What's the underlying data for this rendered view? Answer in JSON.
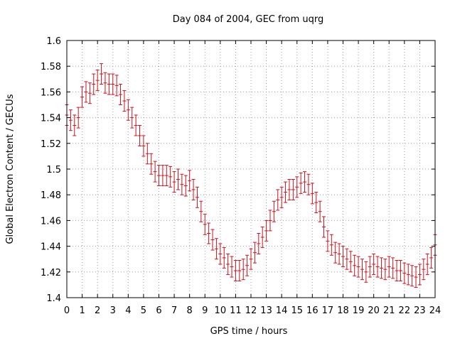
{
  "chart_data": {
    "type": "scatter",
    "title": "Day 084 of 2004, GEC from uqrg",
    "xlabel": "GPS time / hours",
    "ylabel": "Global Electron Content / GECUs",
    "xlim": [
      0,
      24
    ],
    "ylim": [
      1.4,
      1.6
    ],
    "x_ticks": [
      "0",
      "1",
      "2",
      "3",
      "4",
      "5",
      "6",
      "7",
      "8",
      "9",
      "10",
      "11",
      "12",
      "13",
      "14",
      "15",
      "16",
      "17",
      "18",
      "19",
      "20",
      "21",
      "22",
      "23",
      "24"
    ],
    "y_ticks": [
      "1.4",
      "1.42",
      "1.44",
      "1.46",
      "1.48",
      "1.5",
      "1.52",
      "1.54",
      "1.56",
      "1.58",
      "1.6"
    ],
    "grid": true,
    "color": "#c8141e",
    "error": 0.008,
    "x": [
      0.0,
      0.25,
      0.5,
      0.75,
      1.0,
      1.25,
      1.5,
      1.75,
      2.0,
      2.25,
      2.5,
      2.75,
      3.0,
      3.25,
      3.5,
      3.75,
      4.0,
      4.25,
      4.5,
      4.75,
      5.0,
      5.25,
      5.5,
      5.75,
      6.0,
      6.25,
      6.5,
      6.75,
      7.0,
      7.25,
      7.5,
      7.75,
      8.0,
      8.25,
      8.5,
      8.75,
      9.0,
      9.25,
      9.5,
      9.75,
      10.0,
      10.25,
      10.5,
      10.75,
      11.0,
      11.25,
      11.5,
      11.75,
      12.0,
      12.25,
      12.5,
      12.75,
      13.0,
      13.25,
      13.5,
      13.75,
      14.0,
      14.25,
      14.5,
      14.75,
      15.0,
      15.25,
      15.5,
      15.75,
      16.0,
      16.25,
      16.5,
      16.75,
      17.0,
      17.25,
      17.5,
      17.75,
      18.0,
      18.25,
      18.5,
      18.75,
      19.0,
      19.25,
      19.5,
      19.75,
      20.0,
      20.25,
      20.5,
      20.75,
      21.0,
      21.25,
      21.5,
      21.75,
      22.0,
      22.25,
      22.5,
      22.75,
      23.0,
      23.25,
      23.5,
      23.75,
      24.0
    ],
    "y": [
      1.542,
      1.538,
      1.534,
      1.54,
      1.556,
      1.56,
      1.559,
      1.566,
      1.569,
      1.574,
      1.567,
      1.566,
      1.566,
      1.565,
      1.558,
      1.553,
      1.546,
      1.54,
      1.534,
      1.526,
      1.518,
      1.512,
      1.504,
      1.498,
      1.495,
      1.495,
      1.495,
      1.494,
      1.49,
      1.492,
      1.488,
      1.487,
      1.491,
      1.484,
      1.478,
      1.467,
      1.457,
      1.45,
      1.445,
      1.438,
      1.434,
      1.431,
      1.426,
      1.424,
      1.421,
      1.421,
      1.422,
      1.425,
      1.43,
      1.435,
      1.442,
      1.447,
      1.452,
      1.46,
      1.467,
      1.476,
      1.478,
      1.482,
      1.484,
      1.484,
      1.486,
      1.489,
      1.49,
      1.488,
      1.481,
      1.474,
      1.467,
      1.455,
      1.444,
      1.441,
      1.435,
      1.434,
      1.432,
      1.43,
      1.428,
      1.425,
      1.424,
      1.422,
      1.42,
      1.424,
      1.426,
      1.424,
      1.423,
      1.422,
      1.424,
      1.423,
      1.421,
      1.421,
      1.419,
      1.418,
      1.417,
      1.416,
      1.418,
      1.422,
      1.426,
      1.431,
      1.441
    ]
  }
}
